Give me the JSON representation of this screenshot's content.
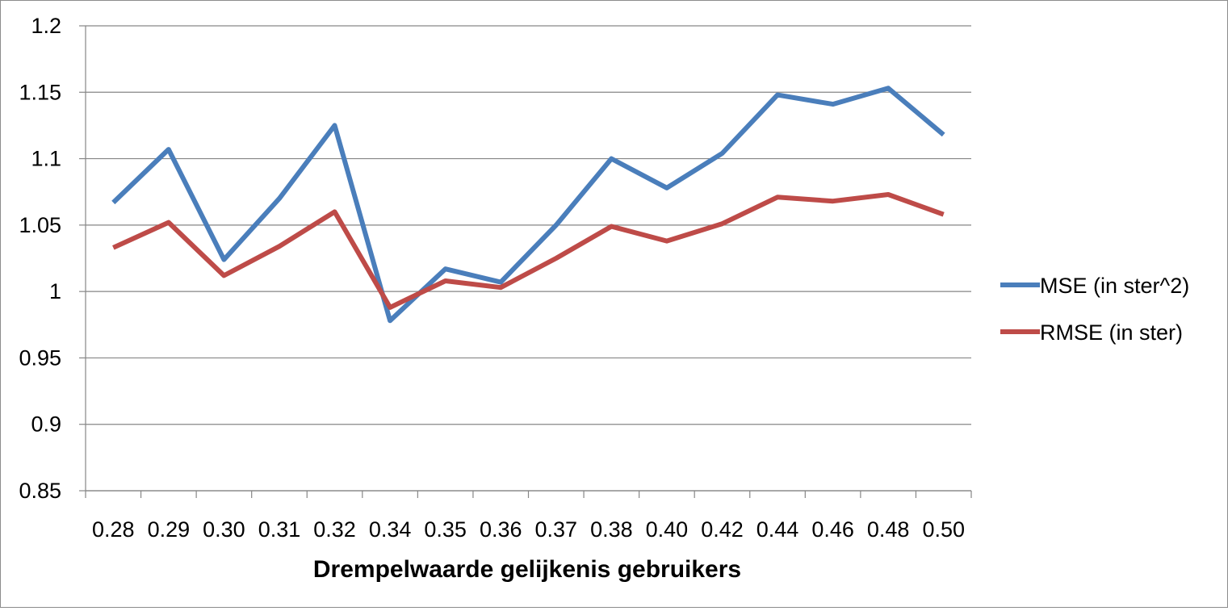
{
  "chart_data": {
    "type": "line",
    "title": "",
    "xlabel": "Drempelwaarde gelijkenis gebruikers",
    "ylabel": "",
    "categories": [
      "0.28",
      "0.29",
      "0.30",
      "0.31",
      "0.32",
      "0.34",
      "0.35",
      "0.36",
      "0.37",
      "0.38",
      "0.40",
      "0.42",
      "0.44",
      "0.46",
      "0.48",
      "0.50"
    ],
    "yticks": [
      "0.85",
      "0.9",
      "0.95",
      "1",
      "1.05",
      "1.1",
      "1.15",
      "1.2"
    ],
    "ylim": [
      0.85,
      1.2
    ],
    "grid": "horizontal",
    "legend_position": "right",
    "series": [
      {
        "name": "MSE (in ster^2)",
        "color": "#4a7ebb",
        "values": [
          1.067,
          1.107,
          1.024,
          1.07,
          1.125,
          0.978,
          1.017,
          1.007,
          1.05,
          1.1,
          1.078,
          1.104,
          1.148,
          1.141,
          1.153,
          1.118
        ]
      },
      {
        "name": "RMSE (in ster)",
        "color": "#be4b48",
        "values": [
          1.033,
          1.052,
          1.012,
          1.034,
          1.06,
          0.988,
          1.008,
          1.003,
          1.025,
          1.049,
          1.038,
          1.051,
          1.071,
          1.068,
          1.073,
          1.058
        ]
      }
    ]
  }
}
